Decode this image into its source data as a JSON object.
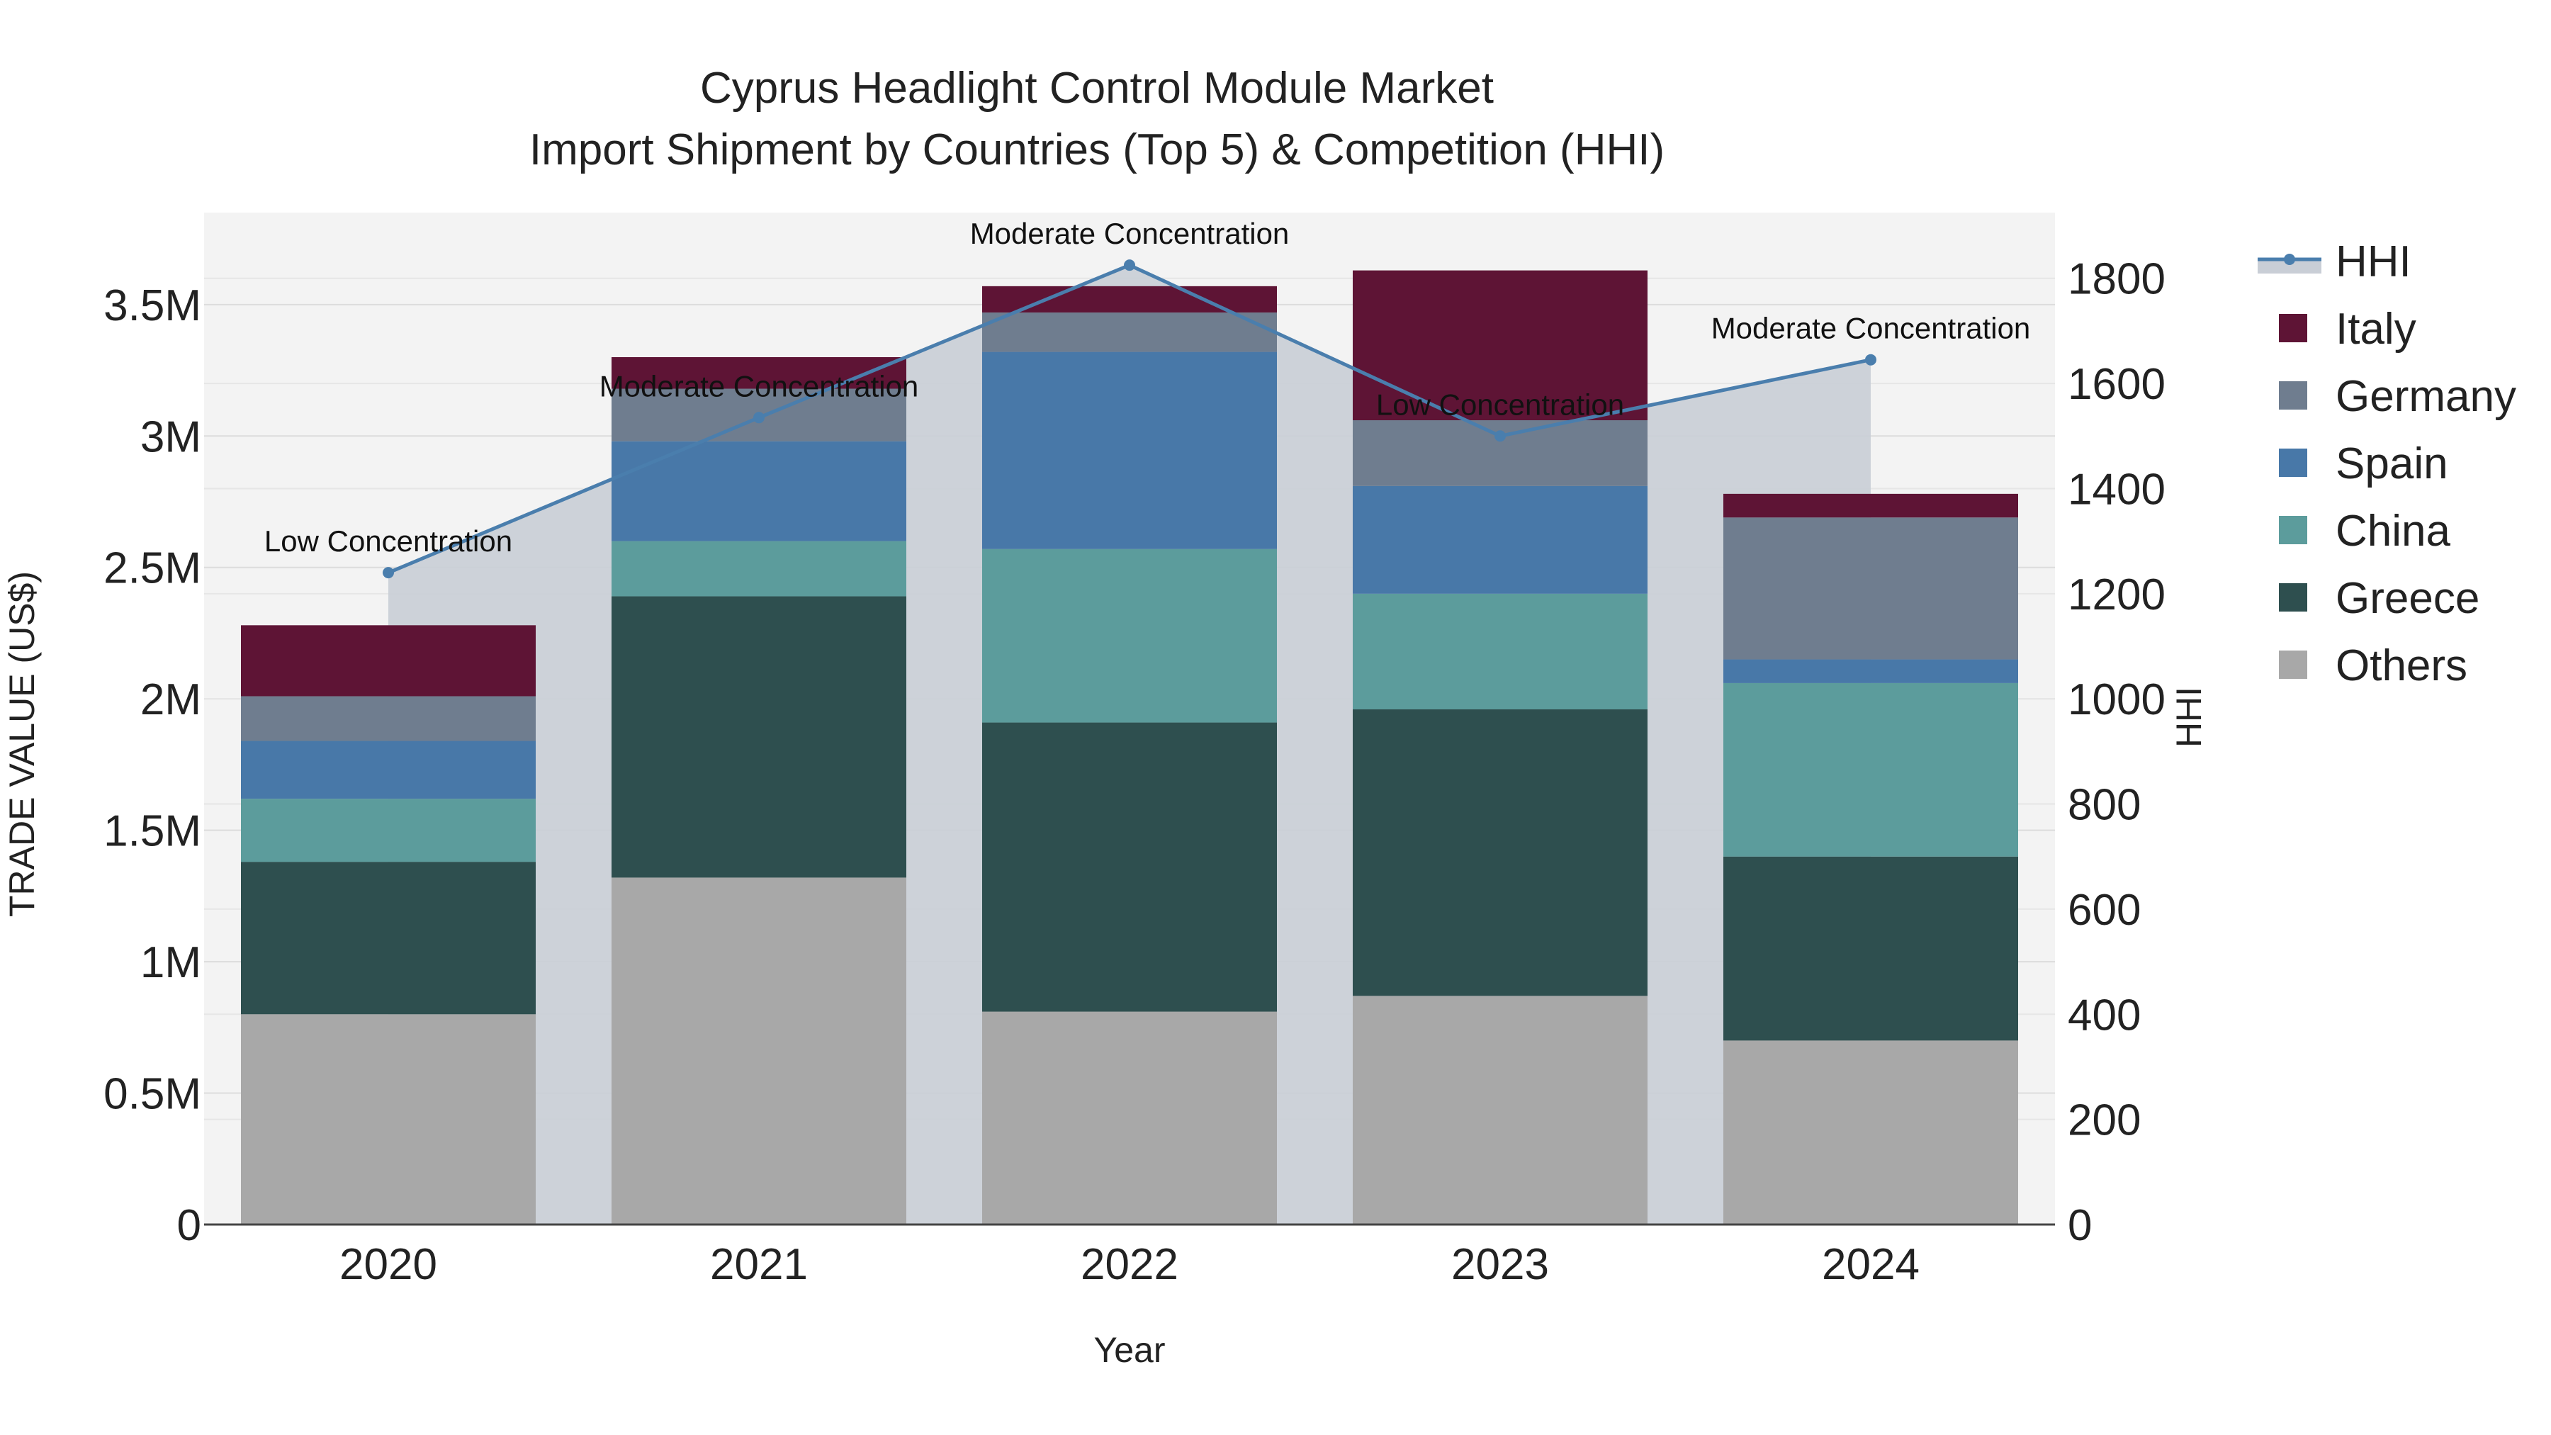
{
  "chart_data": {
    "type": "bar",
    "title": "Cyprus Headlight Control Module Market",
    "subtitle": "Import Shipment by Countries (Top 5) & Competition (HHI)",
    "xlabel": "Year",
    "ylabel": "TRADE VALUE (US$)",
    "y2label": "HHI",
    "categories": [
      "2020",
      "2021",
      "2022",
      "2023",
      "2024"
    ],
    "ylim": [
      0,
      3850000
    ],
    "y2lim": [
      0,
      1925
    ],
    "yticks": [
      0,
      500000,
      1000000,
      1500000,
      2000000,
      2500000,
      3000000,
      3500000
    ],
    "ytick_labels": [
      "0",
      "0.5M",
      "1M",
      "1.5M",
      "2M",
      "2.5M",
      "3M",
      "3.5M"
    ],
    "y2ticks": [
      0,
      200,
      400,
      600,
      800,
      1000,
      1200,
      1400,
      1600,
      1800
    ],
    "y2tick_labels": [
      "0",
      "200",
      "400",
      "600",
      "800",
      "1000",
      "1200",
      "1400",
      "1600",
      "1800"
    ],
    "stack_order": [
      "Others",
      "Greece",
      "China",
      "Spain",
      "Germany",
      "Italy"
    ],
    "series": [
      {
        "name": "Italy",
        "color": "#5e1435",
        "values": [
          270000,
          120000,
          100000,
          570000,
          90000
        ]
      },
      {
        "name": "Germany",
        "color": "#6f7d8f",
        "values": [
          170000,
          200000,
          150000,
          250000,
          540000
        ]
      },
      {
        "name": "Spain",
        "color": "#4878a8",
        "values": [
          220000,
          380000,
          750000,
          410000,
          90000
        ]
      },
      {
        "name": "China",
        "color": "#5c9c9c",
        "values": [
          240000,
          210000,
          660000,
          440000,
          660000
        ]
      },
      {
        "name": "Greece",
        "color": "#2e4f4f",
        "values": [
          580000,
          1070000,
          1100000,
          1090000,
          700000
        ]
      },
      {
        "name": "Others",
        "color": "#a8a8a8",
        "values": [
          800000,
          1320000,
          810000,
          870000,
          700000
        ]
      }
    ],
    "hhi": {
      "name": "HHI",
      "color": "#4a7ead",
      "area_color": "#c9ced6",
      "values": [
        1240,
        1535,
        1825,
        1500,
        1645
      ],
      "labels": [
        "Low Concentration",
        "Moderate Concentration",
        "Moderate Concentration",
        "Low Concentration",
        "Moderate Concentration"
      ]
    },
    "legend_items": [
      "HHI",
      "Italy",
      "Germany",
      "Spain",
      "China",
      "Greece",
      "Others"
    ],
    "legend_position": "right",
    "grid": true
  }
}
